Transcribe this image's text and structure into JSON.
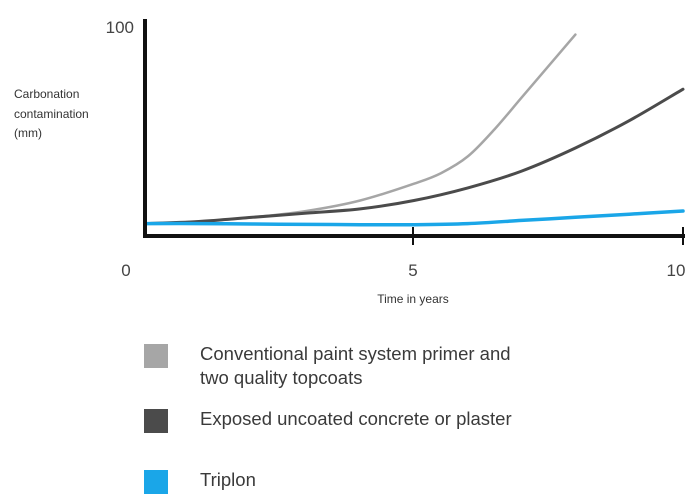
{
  "chart_data": {
    "type": "line",
    "ylabel": "Carbonation\ncontamination\n(mm)",
    "xlabel": "Time in years",
    "xlim": [
      0,
      10
    ],
    "ylim": [
      0,
      100
    ],
    "x_ticks": [
      0,
      5,
      10
    ],
    "y_tick_labels": [
      "100"
    ],
    "grid": false,
    "legend_placement": "bottom",
    "series": [
      {
        "name": "Conventional paint system primer and\ntwo quality topcoats",
        "color": "#a6a6a6",
        "x": [
          0,
          1,
          2,
          3,
          4,
          5,
          5.5,
          6,
          6.5,
          7,
          7.5,
          8
        ],
        "y": [
          4,
          5,
          7,
          10,
          15,
          23,
          28,
          36,
          49,
          64,
          79,
          94
        ]
      },
      {
        "name": "Exposed uncoated concrete or plaster",
        "color": "#4b4b4b",
        "x": [
          0,
          1,
          2,
          3,
          4,
          5,
          6,
          7,
          8,
          9,
          10
        ],
        "y": [
          4,
          5,
          7,
          9,
          11,
          15,
          21,
          29,
          40,
          53,
          68
        ]
      },
      {
        "name": "Triplon",
        "color": "#1aa6e8",
        "x": [
          0,
          1,
          2,
          3,
          4,
          5,
          6,
          7,
          8,
          9,
          10
        ],
        "y": [
          4,
          4,
          3.8,
          3.6,
          3.5,
          3.5,
          4,
          5.5,
          7,
          8.5,
          10
        ]
      }
    ]
  },
  "ticks": {
    "x0": "0",
    "x5": "5",
    "x10": "10",
    "y100": "100"
  }
}
